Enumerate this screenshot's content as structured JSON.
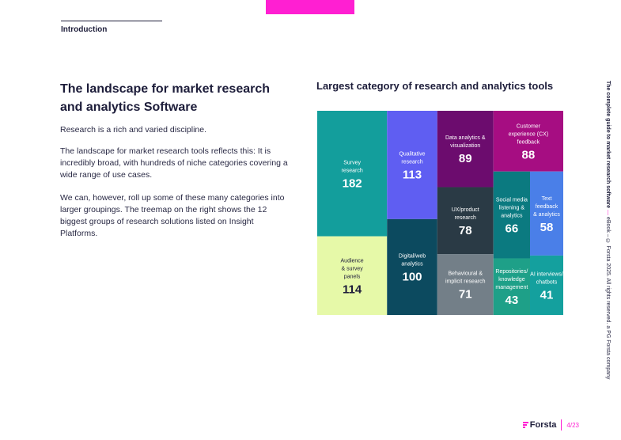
{
  "section_label": "Introduction",
  "heading": "The landscape for market research and analytics Software",
  "paragraphs": [
    "Research is a rich and varied discipline.",
    "The landscape for market research tools reflects this: It is incredibly broad, with hundreds of niche categories covering a wide range of use cases.",
    "We can, however, roll up some of these many categories into larger groupings. The treemap on the right shows the 12 biggest groups of research solutions listed on Insight Platforms."
  ],
  "chart_data": {
    "type": "treemap",
    "title": "Largest category of research and analytics tools",
    "categories": [
      "Survey research",
      "Audience & survey panels",
      "Qualitative research",
      "Digital/web analytics",
      "Data analytics & visualization",
      "Customer experience (CX) feedback",
      "UX/product research",
      "Behavioural & implicit research",
      "Social media listening & analytics",
      "Repositories/ knowledge management",
      "Text feedback & analytics",
      "AI interviews/ chatbots"
    ],
    "values": [
      182,
      114,
      113,
      100,
      89,
      88,
      78,
      71,
      66,
      43,
      58,
      41
    ],
    "labels": [
      [
        "Survey",
        "research"
      ],
      [
        "Audience",
        "& survey",
        "panels"
      ],
      [
        "Qualitative",
        "research"
      ],
      [
        "Digital/web",
        "analytics"
      ],
      [
        "Data analytics &",
        "visualization"
      ],
      [
        "Customer",
        "experience (CX)",
        "feedback"
      ],
      [
        "UX/product",
        "research"
      ],
      [
        "Behavioural &",
        "implicit research"
      ],
      [
        "Social media",
        "listening &",
        "analytics"
      ],
      [
        "Repositories/",
        "knowledge",
        "management"
      ],
      [
        "Text",
        "feedback",
        "& analytics"
      ],
      [
        "AI interviews/",
        "chatbots"
      ]
    ],
    "colors": [
      "#139e9c",
      "#e6f9a8",
      "#5f5ef2",
      "#0c4a5f",
      "#6c0c6e",
      "#a60d82",
      "#2a3a45",
      "#737f88",
      "#0b7a80",
      "#1ea088",
      "#4a7fe8",
      "#14a09e"
    ],
    "text_colors": [
      "#ffffff",
      "#1d1d3a",
      "#ffffff",
      "#ffffff",
      "#ffffff",
      "#ffffff",
      "#ffffff",
      "#ffffff",
      "#ffffff",
      "#ffffff",
      "#ffffff",
      "#ffffff"
    ]
  },
  "sidebar": {
    "title": "The complete guide to market research software",
    "separator": "—",
    "meta": "eBook – © Forsta 2025. All rights reserved. a PG Forsta company"
  },
  "footer": {
    "brand": "Forsta",
    "page": "4/23"
  },
  "colors": {
    "accent": "#ff1fd2",
    "text": "#1d1d3a"
  }
}
